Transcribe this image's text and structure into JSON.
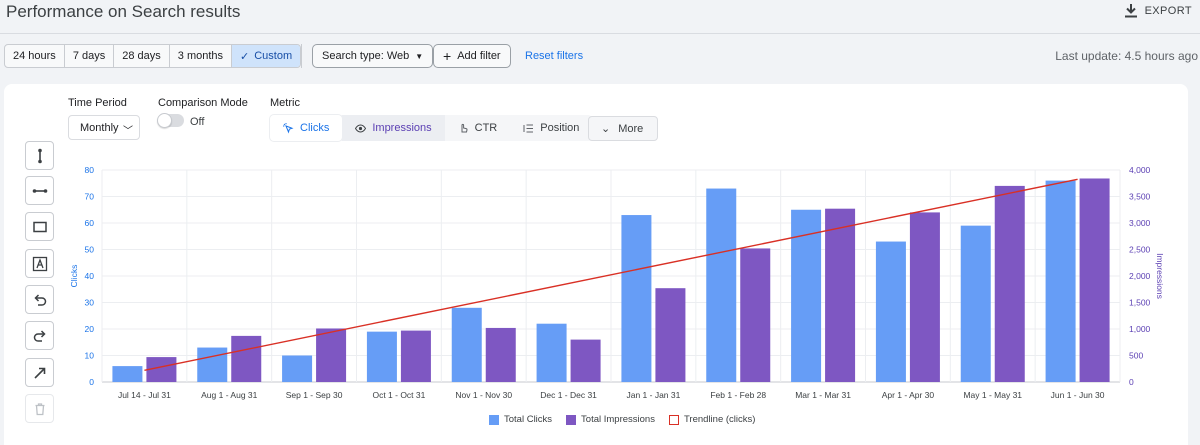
{
  "header": {
    "title": "Performance on Search results",
    "export_label": "EXPORT"
  },
  "toolbar": {
    "ranges": [
      "24 hours",
      "7 days",
      "28 days",
      "3 months",
      "Custom"
    ],
    "active_range": "Custom",
    "search_type": "Search type: Web",
    "add_filter": "Add filter",
    "reset_filters": "Reset filters",
    "last_update": "Last update: 4.5 hours ago"
  },
  "controls": {
    "time_period_label": "Time Period",
    "time_period_value": "Monthly",
    "comparison_label": "Comparison Mode",
    "comparison_state": "Off",
    "metric_label": "Metric",
    "metrics": [
      "Clicks",
      "Impressions",
      "CTR",
      "Position"
    ],
    "more_label": "More"
  },
  "tools": [
    "vertical-line-icon",
    "horizontal-line-icon",
    "rectangle-icon",
    "text-box-icon",
    "undo-icon",
    "redo-icon",
    "arrow-icon",
    "trash-icon"
  ],
  "colors": {
    "clicks": "#669df6",
    "impressions": "#7e57c2",
    "trendline": "#d93025",
    "accent": "#1a73e8"
  },
  "chart_data": {
    "type": "bar",
    "categories": [
      "Jul 14 - Jul 31",
      "Aug 1 - Aug 31",
      "Sep 1 - Sep 30",
      "Oct 1 - Oct 31",
      "Nov 1 - Nov 30",
      "Dec 1 - Dec 31",
      "Jan 1 - Jan 31",
      "Feb 1 - Feb 28",
      "Mar 1 - Mar 31",
      "Apr 1 - Apr 30",
      "May 1 - May 31",
      "Jun 1 - Jun 30"
    ],
    "series": [
      {
        "name": "Total Clicks",
        "axis": "left",
        "values": [
          6,
          13,
          10,
          19,
          28,
          22,
          63,
          73,
          65,
          53,
          59,
          76
        ]
      },
      {
        "name": "Total Impressions",
        "axis": "right",
        "values": [
          470,
          870,
          1010,
          970,
          1020,
          800,
          1770,
          2520,
          3270,
          3200,
          3700,
          3840
        ]
      }
    ],
    "trendline": {
      "name": "Trendline (clicks)",
      "start": 4.4,
      "end": 76.5
    },
    "ylabel": "Clicks",
    "y2label": "Impressions",
    "ylim": [
      0,
      80
    ],
    "y2lim": [
      0,
      4000
    ],
    "yticks": [
      0,
      10,
      20,
      30,
      40,
      50,
      60,
      70,
      80
    ],
    "y2ticks": [
      "0",
      "500",
      "1,000",
      "1,500",
      "2,000",
      "2,500",
      "3,000",
      "3,500",
      "4,000"
    ],
    "grid": true,
    "legend_position": "bottom"
  }
}
